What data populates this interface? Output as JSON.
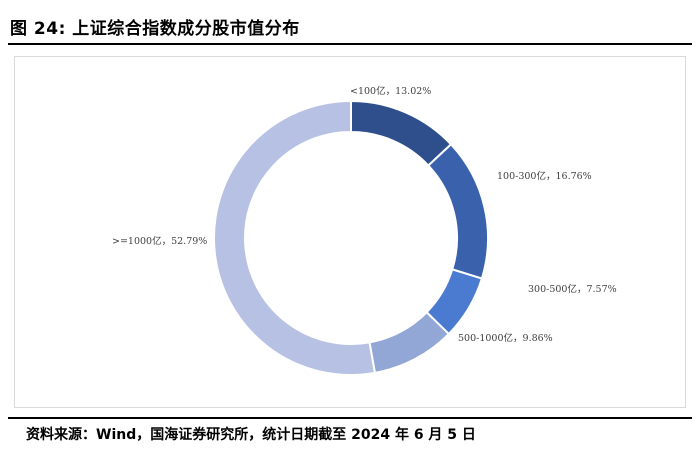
{
  "header": {
    "title": "图 24: 上证综合指数成分股市值分布"
  },
  "footer": {
    "source": "资料来源：Wind，国海证券研究所，统计日期截至 2024 年 6 月 5 日"
  },
  "chart_data": {
    "type": "pie",
    "donut": true,
    "title": "",
    "series": [
      {
        "values": [
          13.02,
          16.76,
          7.57,
          9.86,
          52.79
        ],
        "unit": "%"
      }
    ],
    "categories": [
      "<100亿",
      "100-300亿",
      "300-500亿",
      "500-1000亿",
      ">=1000亿"
    ],
    "labels": [
      "<100亿，13.02%",
      "100-300亿，16.76%",
      "300-500亿，7.57%",
      "500-1000亿，9.86%",
      ">=1000亿，52.79%"
    ],
    "colors": [
      "#2e4f8c",
      "#3a62ac",
      "#4a7bd0",
      "#93a7d7",
      "#b7c1e3"
    ],
    "legend": "none"
  }
}
